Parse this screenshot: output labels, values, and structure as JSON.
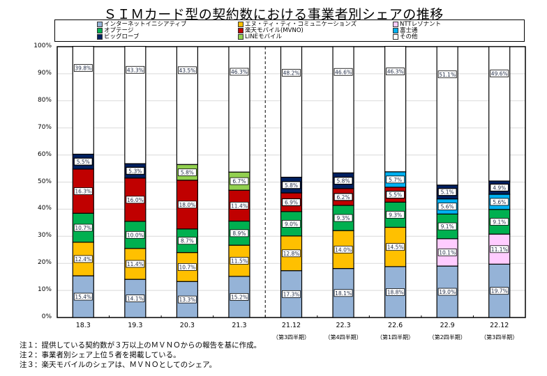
{
  "chart_data": {
    "type": "bar",
    "stacked": true,
    "title": "ＳＩＭカード型の契約数における事業者別シェアの推移",
    "xlabel": "",
    "ylabel": "",
    "ylim": [
      0,
      100
    ],
    "yticks": [
      "0%",
      "10%",
      "20%",
      "30%",
      "40%",
      "50%",
      "60%",
      "70%",
      "80%",
      "90%",
      "100%"
    ],
    "grid": true,
    "legend_position": "top",
    "categories": [
      "18.3",
      "19.3",
      "20.3",
      "21.3",
      "21.12",
      "22.3",
      "22.6",
      "22.9",
      "22.12"
    ],
    "category_sublabels": [
      "",
      "",
      "",
      "",
      "（第3四半期）",
      "（第4四半期）",
      "（第1四半期）",
      "（第2四半期）",
      "（第3四半期）"
    ],
    "separator_after_category": "21.3",
    "series": [
      {
        "name": "インターネットイニシアティブ",
        "color": "#95B3D7",
        "values": [
          15.4,
          14.1,
          13.3,
          15.2,
          17.3,
          18.1,
          18.8,
          19.0,
          19.7
        ]
      },
      {
        "name": "エヌ・ティ・ティ・コミュニケーションズ",
        "color": "#FFC000",
        "values": [
          12.4,
          11.4,
          10.7,
          11.5,
          12.8,
          14.0,
          14.5,
          null,
          null
        ]
      },
      {
        "name": "NTTレゾナント",
        "color": "#FFCCFF",
        "values": [
          null,
          null,
          null,
          null,
          null,
          null,
          null,
          10.1,
          11.1
        ]
      },
      {
        "name": "オプテージ",
        "color": "#00B050",
        "values": [
          10.7,
          10.0,
          8.7,
          8.9,
          9.0,
          9.3,
          9.3,
          9.1,
          9.1
        ]
      },
      {
        "name": "楽天モバイル(MVNO)",
        "color": "#C00000",
        "values": [
          16.3,
          16.0,
          18.0,
          11.4,
          6.9,
          6.2,
          5.5,
          null,
          null
        ]
      },
      {
        "name": "富士通",
        "color": "#00B0F0",
        "values": [
          null,
          null,
          null,
          null,
          null,
          null,
          5.7,
          5.6,
          5.6
        ]
      },
      {
        "name": "ビッグローブ",
        "color": "#002060",
        "values": [
          5.5,
          5.3,
          null,
          null,
          5.8,
          5.8,
          null,
          5.1,
          4.9
        ]
      },
      {
        "name": "LINEモバイル",
        "color": "#92D050",
        "values": [
          null,
          null,
          5.8,
          6.7,
          null,
          null,
          null,
          null,
          null
        ]
      },
      {
        "name": "その他",
        "color": "#FFFFFF",
        "values": [
          39.8,
          43.3,
          43.5,
          46.3,
          48.2,
          46.6,
          46.3,
          51.1,
          49.6
        ]
      }
    ],
    "legend_order": [
      0,
      1,
      2,
      3,
      4,
      5,
      6,
      7,
      8
    ]
  },
  "notes": [
    "注１：提供している契約数が３万以上のＭＶＮＯからの報告を基に作成。",
    "注２：事業者別シェア上位５者を掲載している。",
    "注３：楽天モバイルのシェアは、ＭＶＮＯとしてのシェア。"
  ]
}
